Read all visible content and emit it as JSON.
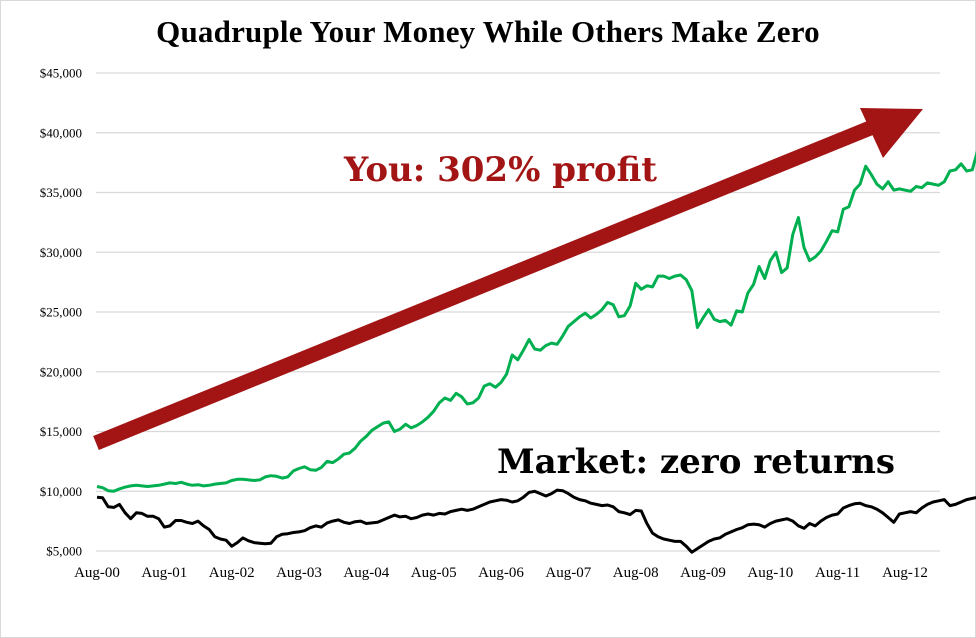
{
  "chart_data": {
    "type": "line",
    "title": "Quadruple Your Money While Others Make Zero",
    "xlabel": "",
    "ylabel": "",
    "ylim": [
      5000,
      45000
    ],
    "yticks": [
      "$5,000",
      "$10,000",
      "$15,000",
      "$20,000",
      "$25,000",
      "$30,000",
      "$35,000",
      "$40,000",
      "$45,000"
    ],
    "ytick_values": [
      5000,
      10000,
      15000,
      20000,
      25000,
      30000,
      35000,
      40000,
      45000
    ],
    "xticks": [
      "Aug-00",
      "Aug-01",
      "Aug-02",
      "Aug-03",
      "Aug-04",
      "Aug-05",
      "Aug-06",
      "Aug-07",
      "Aug-08",
      "Aug-09",
      "Aug-10",
      "Aug-11",
      "Aug-12"
    ],
    "grid": true,
    "legend": null,
    "x_start": "Aug-00",
    "x_frequency": "monthly",
    "series": [
      {
        "name": "You",
        "color": "#00b050",
        "values": [
          10400,
          10300,
          10050,
          10000,
          10200,
          10350,
          10450,
          10500,
          10450,
          10400,
          10450,
          10500,
          10600,
          10700,
          10650,
          10750,
          10600,
          10500,
          10550,
          10450,
          10500,
          10600,
          10650,
          10700,
          10900,
          11000,
          11000,
          10950,
          10900,
          10950,
          11200,
          11300,
          11250,
          11100,
          11200,
          11700,
          11900,
          12050,
          11800,
          11750,
          12000,
          12500,
          12400,
          12700,
          13100,
          13200,
          13600,
          14200,
          14600,
          15100,
          15400,
          15700,
          15800,
          15000,
          15200,
          15600,
          15300,
          15500,
          15800,
          16200,
          16700,
          17400,
          17800,
          17600,
          18200,
          17900,
          17300,
          17400,
          17800,
          18800,
          19000,
          18700,
          19100,
          19800,
          21400,
          21000,
          21800,
          22700,
          21900,
          21800,
          22200,
          22400,
          22300,
          23000,
          23800,
          24200,
          24600,
          24900,
          24500,
          24800,
          25200,
          25800,
          25600,
          24600,
          24700,
          25500,
          27400,
          26900,
          27200,
          27100,
          28000,
          28000,
          27800,
          28000,
          28100,
          27700,
          26800,
          23700,
          24500,
          25200,
          24400,
          24200,
          24300,
          23900,
          25100,
          25000,
          26600,
          27300,
          28800,
          27800,
          29300,
          30000,
          28300,
          28700,
          31500,
          32900,
          30400,
          29300,
          29600,
          30100,
          30900,
          31800,
          31700,
          33600,
          33800,
          35200,
          35700,
          37200,
          36500,
          35700,
          35300,
          35900,
          35200,
          35300,
          35200,
          35100,
          35500,
          35400,
          35800,
          35700,
          35600,
          35900,
          36800,
          36900,
          37400,
          36800,
          36900,
          38600,
          39800,
          40200
        ],
        "label": "You: 302% profit"
      },
      {
        "name": "Market",
        "color": "#000000",
        "values": [
          9500,
          9450,
          8700,
          8650,
          8900,
          8200,
          7700,
          8200,
          8150,
          7900,
          7900,
          7700,
          7000,
          7100,
          7550,
          7550,
          7400,
          7300,
          7500,
          7100,
          6800,
          6200,
          6000,
          5900,
          5400,
          5700,
          6100,
          5850,
          5700,
          5650,
          5600,
          5650,
          6200,
          6400,
          6450,
          6550,
          6600,
          6700,
          6950,
          7100,
          7000,
          7350,
          7500,
          7600,
          7400,
          7300,
          7450,
          7500,
          7300,
          7350,
          7400,
          7600,
          7800,
          8000,
          7850,
          7900,
          7700,
          7800,
          8000,
          8100,
          8000,
          8150,
          8100,
          8300,
          8400,
          8500,
          8400,
          8500,
          8700,
          8900,
          9100,
          9200,
          9300,
          9250,
          9100,
          9200,
          9500,
          9900,
          10000,
          9800,
          9600,
          9800,
          10100,
          10050,
          9800,
          9500,
          9300,
          9200,
          9000,
          8900,
          8800,
          8850,
          8700,
          8300,
          8200,
          8050,
          8400,
          8350,
          7300,
          6500,
          6200,
          6000,
          5900,
          5800,
          5800,
          5400,
          4900,
          5200,
          5500,
          5800,
          6000,
          6100,
          6400,
          6600,
          6800,
          6950,
          7200,
          7250,
          7200,
          7000,
          7300,
          7500,
          7600,
          7700,
          7500,
          7100,
          6900,
          7300,
          7100,
          7500,
          7800,
          8000,
          8100,
          8600,
          8800,
          8950,
          9000,
          8800,
          8700,
          8500,
          8200,
          7800,
          7400,
          8100,
          8200,
          8300,
          8200,
          8600,
          8900,
          9100,
          9200,
          9300,
          8800,
          8900,
          9100,
          9300,
          9400,
          9500,
          9350,
          9300,
          9400,
          9600,
          9900,
          10100,
          10300
        ],
        "label": "Market: zero returns"
      }
    ],
    "annotations": [
      {
        "text": "You: 302% profit",
        "color": "#a31515"
      },
      {
        "text": "Market: zero returns",
        "color": "#000000"
      },
      {
        "type": "arrow",
        "color": "#a31515",
        "from": [
          "Aug-00",
          13800
        ],
        "to": [
          "~Feb-13",
          42000
        ]
      }
    ]
  },
  "colors": {
    "you_line": "#00b050",
    "market_line": "#000000",
    "arrow": "#a31515",
    "grid": "#d9d9d9"
  }
}
